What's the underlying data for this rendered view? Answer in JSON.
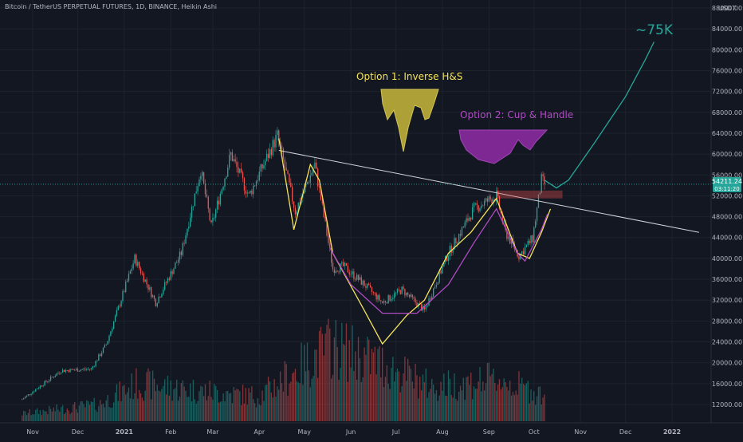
{
  "header": {
    "symbol_title": "Bitcoin / TetherUS PERPETUAL FUTURES, 1D, BINANCE, Heikin Ashi"
  },
  "price_scale": {
    "currency": "USDT",
    "current_price": "54211.24",
    "countdown": "03:11:20",
    "current_price_color": "#26a69a"
  },
  "annotations": {
    "option1": "Option 1: Inverse H&S",
    "option2": "Option 2: Cup & Handle",
    "target": "~75K",
    "option1_color": "#f5e35b",
    "option2_color": "#b04bc4",
    "target_color": "#26a69a"
  },
  "colors": {
    "background": "#131722",
    "up": "#26a69a",
    "down": "#ef5350",
    "trendline": "#d1d4dc"
  },
  "chart_data": {
    "type": "candlestick",
    "x_ticks": [
      "Nov",
      "Dec",
      "2021",
      "Feb",
      "Mar",
      "Apr",
      "May",
      "Jun",
      "Jul",
      "Aug",
      "Sep",
      "Oct",
      "Nov",
      "Dec",
      "2022"
    ],
    "y_ticks": [
      12000,
      16000,
      20000,
      24000,
      28000,
      32000,
      36000,
      40000,
      44000,
      48000,
      52000,
      56000,
      60000,
      64000,
      68000,
      72000,
      76000,
      80000,
      84000,
      88000
    ],
    "ylim": [
      10000,
      90000
    ],
    "price_anchors": [
      [
        "2020-10-25",
        13000
      ],
      [
        "2020-11-20",
        18500
      ],
      [
        "2020-12-10",
        18800
      ],
      [
        "2020-12-20",
        23500
      ],
      [
        "2021-01-08",
        40000
      ],
      [
        "2021-01-22",
        31500
      ],
      [
        "2021-02-08",
        41000
      ],
      [
        "2021-02-21",
        57000
      ],
      [
        "2021-02-28",
        46000
      ],
      [
        "2021-03-13",
        60000
      ],
      [
        "2021-03-25",
        52000
      ],
      [
        "2021-04-13",
        63500
      ],
      [
        "2021-04-25",
        49000
      ],
      [
        "2021-05-08",
        58000
      ],
      [
        "2021-05-20",
        38000
      ],
      [
        "2021-05-27",
        38500
      ],
      [
        "2021-06-10",
        35000
      ],
      [
        "2021-06-22",
        31500
      ],
      [
        "2021-07-05",
        34000
      ],
      [
        "2021-07-20",
        30000
      ],
      [
        "2021-08-05",
        41000
      ],
      [
        "2021-08-22",
        49500
      ],
      [
        "2021-09-06",
        52000
      ],
      [
        "2021-09-12",
        45000
      ],
      [
        "2021-09-21",
        40500
      ],
      [
        "2021-09-30",
        43800
      ],
      [
        "2021-10-06",
        55000
      ],
      [
        "2021-10-08",
        54211
      ]
    ],
    "volume_anchors": [
      [
        "2020-10-25",
        0.1
      ],
      [
        "2020-12-15",
        0.22
      ],
      [
        "2021-01-10",
        0.5
      ],
      [
        "2021-02-20",
        0.4
      ],
      [
        "2021-04-01",
        0.33
      ],
      [
        "2021-05-19",
        1.0
      ],
      [
        "2021-06-22",
        0.75
      ],
      [
        "2021-07-25",
        0.45
      ],
      [
        "2021-09-07",
        0.55
      ],
      [
        "2021-10-08",
        0.35
      ]
    ],
    "trendline": [
      [
        "2021-04-14",
        60700
      ],
      [
        "2022-01-19",
        45000
      ]
    ],
    "resistance_zone": [
      [
        "2021-09-06",
        "2021-10-20"
      ],
      [
        51500,
        53000
      ]
    ],
    "inverse_hs_path": [
      [
        "2021-04-14",
        63000
      ],
      [
        "2021-04-24",
        45500
      ],
      [
        "2021-05-05",
        58000
      ],
      [
        "2021-05-11",
        55000
      ],
      [
        "2021-05-20",
        41000
      ],
      [
        "2021-06-10",
        30000
      ],
      [
        "2021-06-22",
        23600
      ],
      [
        "2021-07-08",
        29000
      ],
      [
        "2021-07-20",
        32000
      ],
      [
        "2021-08-05",
        41000
      ],
      [
        "2021-08-20",
        45000
      ],
      [
        "2021-09-06",
        51500
      ],
      [
        "2021-09-20",
        41000
      ],
      [
        "2021-09-28",
        40000
      ],
      [
        "2021-10-06",
        45000
      ],
      [
        "2021-10-12",
        49500
      ]
    ],
    "cup_handle_path": [
      [
        "2021-05-18",
        42000
      ],
      [
        "2021-06-01",
        35000
      ],
      [
        "2021-06-22",
        29500
      ],
      [
        "2021-07-15",
        29500
      ],
      [
        "2021-08-05",
        35000
      ],
      [
        "2021-08-22",
        43000
      ],
      [
        "2021-09-06",
        49500
      ],
      [
        "2021-09-20",
        41000
      ],
      [
        "2021-09-25",
        39500
      ],
      [
        "2021-10-06",
        45500
      ],
      [
        "2021-10-10",
        48500
      ]
    ],
    "projection_path": [
      [
        "2021-10-08",
        55000
      ],
      [
        "2021-10-16",
        53500
      ],
      [
        "2021-10-24",
        55000
      ],
      [
        "2021-11-10",
        62000
      ],
      [
        "2021-12-01",
        71000
      ],
      [
        "2021-12-14",
        78000
      ],
      [
        "2021-12-20",
        81500
      ]
    ]
  }
}
